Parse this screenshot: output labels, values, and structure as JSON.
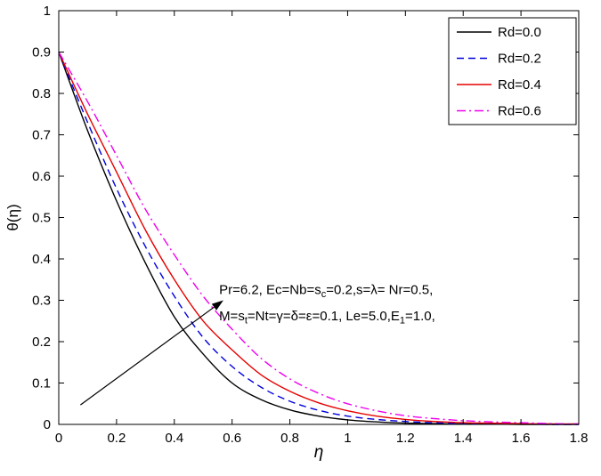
{
  "figure": {
    "background": "#ffffff"
  },
  "chart_data": {
    "type": "line",
    "title": "",
    "xlabel": "η",
    "ylabel": "θ(η)",
    "xlim": [
      0,
      1.8
    ],
    "ylim": [
      0,
      1
    ],
    "xticks": [
      0,
      0.2,
      0.4,
      0.6,
      0.8,
      1,
      1.2,
      1.4,
      1.6,
      1.8
    ],
    "yticks": [
      0,
      0.1,
      0.2,
      0.3,
      0.4,
      0.5,
      0.6,
      0.7,
      0.8,
      0.9,
      1
    ],
    "grid": false,
    "legend_position": "top-right",
    "axis_color": "#000000",
    "x": [
      0,
      0.1,
      0.2,
      0.3,
      0.4,
      0.5,
      0.6,
      0.7,
      0.8,
      0.9,
      1.0,
      1.1,
      1.2,
      1.3,
      1.4,
      1.5,
      1.6,
      1.7,
      1.8
    ],
    "series": [
      {
        "name": "Rd=0.0",
        "color": "#000000",
        "style": "solid",
        "values": [
          0.9,
          0.71,
          0.54,
          0.39,
          0.26,
          0.17,
          0.1,
          0.06,
          0.035,
          0.02,
          0.011,
          0.006,
          0.003,
          0.002,
          0.001,
          0.001,
          0.0,
          0.0,
          0.0
        ]
      },
      {
        "name": "Rd=0.2",
        "color": "#0000dd",
        "style": "dashed",
        "values": [
          0.9,
          0.73,
          0.57,
          0.43,
          0.31,
          0.21,
          0.14,
          0.09,
          0.056,
          0.034,
          0.02,
          0.012,
          0.007,
          0.004,
          0.002,
          0.001,
          0.001,
          0.0,
          0.0
        ]
      },
      {
        "name": "Rd=0.4",
        "color": "#e60000",
        "style": "solid",
        "values": [
          0.9,
          0.75,
          0.61,
          0.47,
          0.35,
          0.25,
          0.18,
          0.12,
          0.08,
          0.052,
          0.033,
          0.02,
          0.012,
          0.007,
          0.004,
          0.003,
          0.002,
          0.001,
          0.001
        ]
      },
      {
        "name": "Rd=0.6",
        "color": "#ee00ee",
        "style": "dashdot",
        "values": [
          0.9,
          0.78,
          0.65,
          0.52,
          0.41,
          0.31,
          0.23,
          0.16,
          0.11,
          0.075,
          0.05,
          0.033,
          0.021,
          0.014,
          0.009,
          0.006,
          0.004,
          0.002,
          0.001
        ]
      }
    ],
    "annotation": {
      "x": 0.555,
      "lines": [
        {
          "y": 0.315,
          "segments": [
            {
              "t": "Pr=6.2, Ec=Nb=s"
            },
            {
              "t": "c",
              "sub": true
            },
            {
              "t": "=0.2,s=λ= Nr=0.5,"
            }
          ]
        },
        {
          "y": 0.252,
          "segments": [
            {
              "t": "M=s"
            },
            {
              "t": "t",
              "sub": true
            },
            {
              "t": "=Nt=γ=δ=ε=0.1, Le=5.0,E"
            },
            {
              "t": "1",
              "sub": true
            },
            {
              "t": "=1.0,"
            }
          ]
        }
      ]
    },
    "arrow": {
      "x1": 0.075,
      "y1": 0.047,
      "x2": 0.57,
      "y2": 0.3,
      "color": "#000000"
    }
  }
}
